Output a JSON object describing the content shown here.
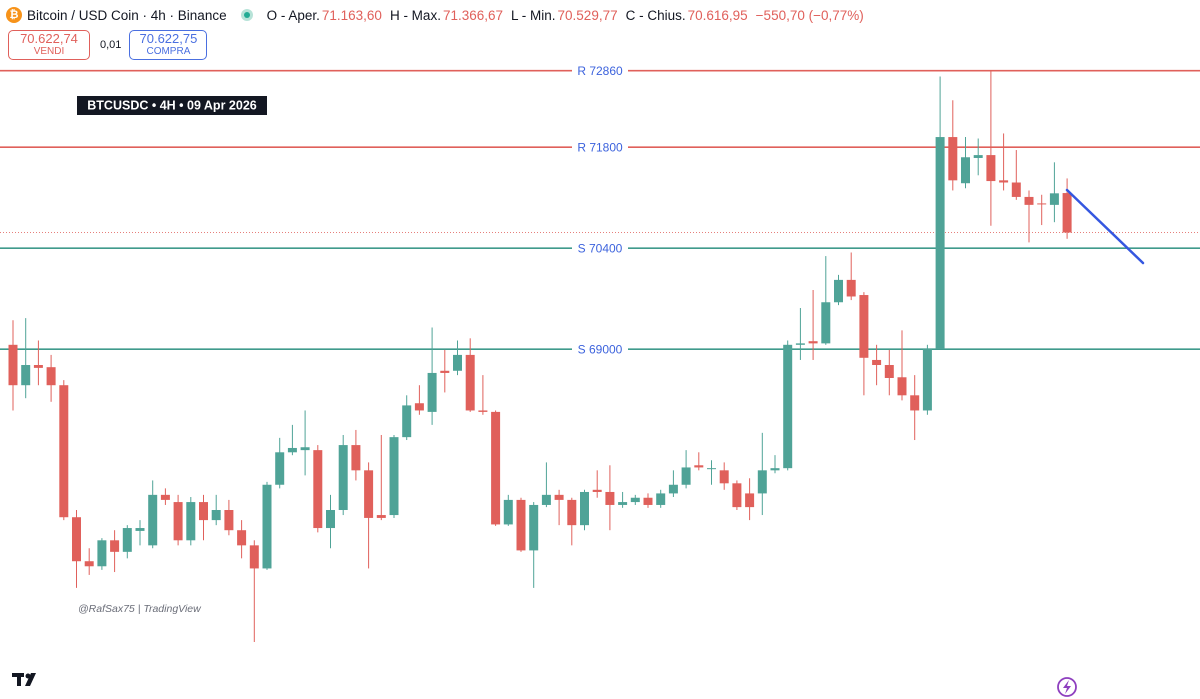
{
  "header": {
    "symbol": "Bitcoin / USD Coin · 4h · Binance",
    "ohlc": [
      {
        "label": "O - Aper.",
        "value": "71.163,60"
      },
      {
        "label": "H - Max.",
        "value": "71.366,67"
      },
      {
        "label": "L - Min.",
        "value": "70.529,77"
      },
      {
        "label": "C - Chius.",
        "value": "70.616,95"
      }
    ],
    "change": "−550,70 (−0,77%)"
  },
  "trade_panel": {
    "sell_price": "70.622,74",
    "sell_label": "VENDI",
    "quantity": "0,01",
    "buy_price": "70.622,75",
    "buy_label": "COMPRA"
  },
  "chart_data": {
    "type": "candlestick",
    "title": "BTCUSDC • 4H • 09 Apr 2026",
    "annotation": "@RafSax75 | TradingView",
    "ylim": [
      64150,
      73840
    ],
    "up_color": "#4fa397",
    "down_color": "#e0605b",
    "levels": [
      {
        "value": 72860,
        "label": "R 72860",
        "color": "#e0605b"
      },
      {
        "value": 71800,
        "label": "R 71800",
        "color": "#e0605b"
      },
      {
        "value": 70400,
        "label": "S 70400",
        "color": "#3f9a8c"
      },
      {
        "value": 69000,
        "label": "S 69000",
        "color": "#3f9a8c"
      }
    ],
    "open": [
      69060,
      68500,
      68780,
      68750,
      68500,
      66670,
      66060,
      65990,
      66350,
      66190,
      66480,
      66280,
      66980,
      66880,
      66350,
      66880,
      66630,
      66770,
      66490,
      66280,
      65960,
      67120,
      67570,
      67600,
      67600,
      66520,
      66770,
      67670,
      67320,
      66700,
      66700,
      67780,
      68250,
      68130,
      68700,
      68700,
      68920,
      68150,
      68130,
      66570,
      66910,
      66210,
      66840,
      66980,
      66910,
      66560,
      67050,
      67020,
      66840,
      66880,
      66940,
      66840,
      67000,
      67120,
      67390,
      67340,
      67320,
      67140,
      67000,
      67000,
      67320,
      67350,
      69060,
      69110,
      69080,
      69650,
      69960,
      69750,
      68850,
      68780,
      68610,
      68360,
      68150,
      69000,
      71940,
      71300,
      71650,
      71690,
      71340,
      71310,
      71110,
      71020,
      71000,
      71163.6
    ],
    "high": [
      69400,
      69430,
      69120,
      68920,
      68570,
      66770,
      66240,
      66380,
      66490,
      66560,
      66630,
      67180,
      67070,
      66980,
      66950,
      66980,
      66980,
      66910,
      66630,
      66350,
      67160,
      67770,
      67950,
      68150,
      67670,
      66980,
      67810,
      67880,
      67430,
      67810,
      67810,
      68360,
      68500,
      69300,
      68990,
      69120,
      69150,
      68640,
      68150,
      66980,
      66940,
      66880,
      67430,
      67050,
      66940,
      67050,
      67320,
      67390,
      67020,
      66980,
      67000,
      67050,
      67320,
      67600,
      67570,
      67460,
      67430,
      67180,
      67210,
      67840,
      67530,
      69120,
      69570,
      69820,
      70290,
      70030,
      70340,
      69790,
      69060,
      68990,
      69260,
      68640,
      69060,
      72780,
      72450,
      71940,
      71920,
      72870,
      71990,
      71760,
      71200,
      71140,
      71590,
      71366.67
    ],
    "low": [
      68150,
      68320,
      68500,
      68270,
      66630,
      65690,
      65870,
      65940,
      65910,
      66100,
      66280,
      66240,
      66840,
      66280,
      66280,
      66350,
      66560,
      66420,
      66100,
      64940,
      65940,
      67070,
      67530,
      67250,
      66460,
      66240,
      66700,
      67180,
      65960,
      66630,
      66660,
      67740,
      68090,
      67950,
      68400,
      68640,
      68130,
      68090,
      66550,
      66550,
      66190,
      65690,
      66810,
      66560,
      66280,
      66490,
      66940,
      66490,
      66800,
      66840,
      66800,
      66800,
      66950,
      67070,
      67320,
      67120,
      67050,
      66770,
      66630,
      66700,
      67280,
      67320,
      68850,
      68850,
      69060,
      69610,
      69680,
      68360,
      68500,
      68360,
      68290,
      67740,
      68090,
      69000,
      71200,
      71230,
      71410,
      70710,
      71200,
      71070,
      70480,
      70720,
      70760,
      70529.77
    ],
    "close": [
      68500,
      68780,
      68740,
      68500,
      66670,
      66060,
      65990,
      66350,
      66190,
      66520,
      66520,
      66980,
      66910,
      66350,
      66880,
      66630,
      66770,
      66490,
      66280,
      65960,
      67120,
      67570,
      67630,
      67640,
      66520,
      66770,
      67670,
      67320,
      66660,
      66660,
      67780,
      68220,
      68150,
      68670,
      68670,
      68920,
      68150,
      68130,
      66570,
      66910,
      66210,
      66840,
      66980,
      66910,
      66560,
      67020,
      67020,
      66840,
      66880,
      66940,
      66840,
      67000,
      67120,
      67360,
      67360,
      67350,
      67140,
      66810,
      66810,
      67320,
      67350,
      69060,
      69080,
      69080,
      69650,
      69960,
      69730,
      68880,
      68780,
      68600,
      68360,
      68150,
      69000,
      71940,
      71340,
      71660,
      71690,
      71330,
      71310,
      71110,
      71000,
      71010,
      71160,
      70616.95
    ]
  }
}
